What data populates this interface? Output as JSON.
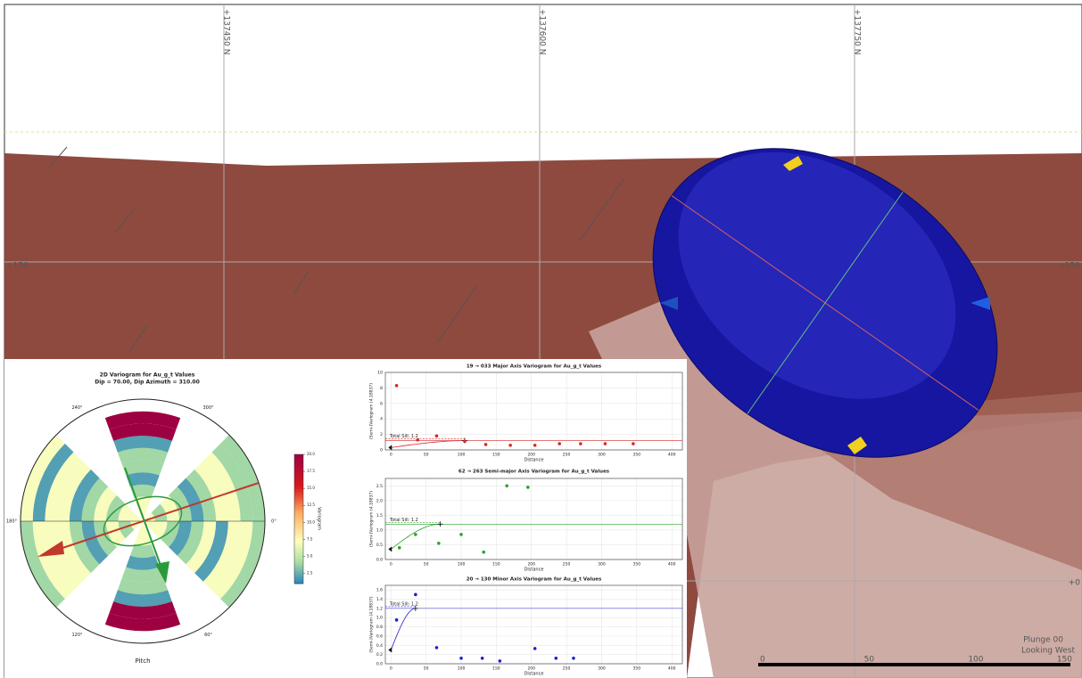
{
  "viewport": {
    "north_labels": [
      "+137450 N",
      "+137600 N",
      "+137750 N"
    ],
    "elevation_labels": [
      "+150",
      "+150",
      "+0"
    ],
    "view": [
      "Plunge 00",
      "Looking West"
    ],
    "scale_bar": [
      0,
      50,
      100,
      150
    ]
  },
  "chart_data": [
    {
      "type": "polar_heatmap",
      "title": "2D Variogram for Au_g_t Values",
      "subtitle": "Dip = 70.00, Dip Azimuth = 310.00",
      "x_label": "Pitch",
      "angle_ticks": [
        {
          "value": 0,
          "label": "0°"
        },
        {
          "value": 60,
          "label": "60°"
        },
        {
          "value": 120,
          "label": "120°"
        },
        {
          "value": 180,
          "label": "180°"
        },
        {
          "value": 240,
          "label": "240°"
        },
        {
          "value": 300,
          "label": "300°"
        }
      ],
      "sectors": [
        {
          "start": 250,
          "end": 290,
          "values": [
            7,
            7,
            4,
            2,
            4,
            4,
            2,
            20,
            20,
            null
          ]
        },
        {
          "start": 70,
          "end": 110,
          "values": [
            7,
            7,
            4,
            2,
            4,
            4,
            2,
            20,
            20,
            null
          ]
        },
        {
          "start": 180,
          "end": 225,
          "values": [
            7,
            7,
            4,
            7,
            4,
            2,
            7,
            7,
            2,
            7
          ]
        },
        {
          "start": 135,
          "end": 180,
          "values": [
            7,
            4,
            7,
            4,
            2,
            4,
            7,
            7,
            7,
            4
          ]
        },
        {
          "start": 315,
          "end": 360,
          "values": [
            7,
            4,
            7,
            4,
            2,
            4,
            7,
            7,
            4,
            4
          ]
        },
        {
          "start": 0,
          "end": 45,
          "values": [
            7,
            7,
            4,
            2,
            4,
            7,
            2,
            7,
            7,
            4
          ]
        }
      ],
      "colorbar_label": "Variogram",
      "clim": [
        1,
        20
      ],
      "cticks": [
        {
          "value": 2.5,
          "label": "2.5"
        },
        {
          "value": 5,
          "label": "5.0"
        },
        {
          "value": 7.5,
          "label": "7.5"
        },
        {
          "value": 10,
          "label": "10.0"
        },
        {
          "value": 12.5,
          "label": "12.5"
        },
        {
          "value": 15,
          "label": "15.0"
        },
        {
          "value": 17.5,
          "label": "17.5"
        },
        {
          "value": 20,
          "label": "20.0"
        }
      ]
    },
    {
      "type": "scatter",
      "title": "19 → 033 Major Axis Variogram for Au_g_t Values",
      "x_label": "Distance",
      "y_label": "(Semi-)Variogram (4.18837)",
      "x": [
        8,
        38,
        65,
        105,
        135,
        170,
        205,
        240,
        270,
        305,
        345
      ],
      "values": [
        8.3,
        1.3,
        1.8,
        1.1,
        0.7,
        0.6,
        0.6,
        0.8,
        0.8,
        0.8,
        0.8
      ],
      "color": "#d62728",
      "sill": {
        "value": 1.2,
        "label": "Total Sill: 1.2"
      },
      "model": {
        "nugget": 0.3,
        "range": 105
      },
      "xlim": [
        -8,
        415
      ],
      "ylim": [
        0,
        10
      ],
      "xticks": [
        0,
        50,
        100,
        150,
        200,
        250,
        300,
        350,
        400
      ],
      "yticks": [
        0,
        2,
        4,
        6,
        8,
        10
      ],
      "grid": true
    },
    {
      "type": "scatter",
      "title": "62 → 263 Semi-major Axis Variogram for Au_g_t Values",
      "x_label": "Distance",
      "y_label": "(Semi-)Variogram (4.18837)",
      "x": [
        12,
        35,
        68,
        100,
        132,
        165,
        195
      ],
      "values": [
        0.4,
        0.85,
        0.55,
        0.85,
        0.25,
        2.5,
        2.45
      ],
      "color": "#2ca02c",
      "sill": {
        "value": 1.2,
        "label": "Total Sill: 1.2"
      },
      "model": {
        "nugget": 0.35,
        "range": 70
      },
      "xlim": [
        -8,
        415
      ],
      "ylim": [
        0,
        2.75
      ],
      "xticks": [
        0,
        50,
        100,
        150,
        200,
        250,
        300,
        350,
        400
      ],
      "yticks": [
        {
          "value": 0,
          "label": "0.0"
        },
        {
          "value": 0.5,
          "label": "0.5"
        },
        {
          "value": 1,
          "label": "1.0"
        },
        {
          "value": 1.5,
          "label": "1.5"
        },
        {
          "value": 2,
          "label": "2.0"
        },
        {
          "value": 2.5,
          "label": "2.5"
        }
      ],
      "grid": true
    },
    {
      "type": "scatter",
      "title": "20 → 130 Minor Axis Variogram for Au_g_t Values",
      "x_label": "Distance",
      "y_label": "(Semi-)Variogram (4.18837)",
      "x": [
        8,
        35,
        65,
        100,
        130,
        155,
        205,
        235,
        260
      ],
      "values": [
        0.95,
        1.5,
        0.35,
        0.12,
        0.12,
        0.06,
        0.33,
        0.12,
        0.12
      ],
      "color": "#1f1fcf",
      "sill": {
        "value": 1.2,
        "label": "Total Sill: 1.2"
      },
      "model": {
        "nugget": 0.3,
        "range": 35
      },
      "xlim": [
        -8,
        415
      ],
      "ylim": [
        0,
        1.7
      ],
      "xticks": [
        0,
        50,
        100,
        150,
        200,
        250,
        300,
        350,
        400
      ],
      "yticks": [
        {
          "value": 0,
          "label": "0.0"
        },
        {
          "value": 0.2,
          "label": "0.2"
        },
        {
          "value": 0.4,
          "label": "0.4"
        },
        {
          "value": 0.6,
          "label": "0.6"
        },
        {
          "value": 0.8,
          "label": "0.8"
        },
        {
          "value": 1,
          "label": "1.0"
        },
        {
          "value": 1.2,
          "label": "1.2"
        },
        {
          "value": 1.4,
          "label": "1.4"
        },
        {
          "value": 1.6,
          "label": "1.6"
        }
      ],
      "grid": true
    }
  ]
}
